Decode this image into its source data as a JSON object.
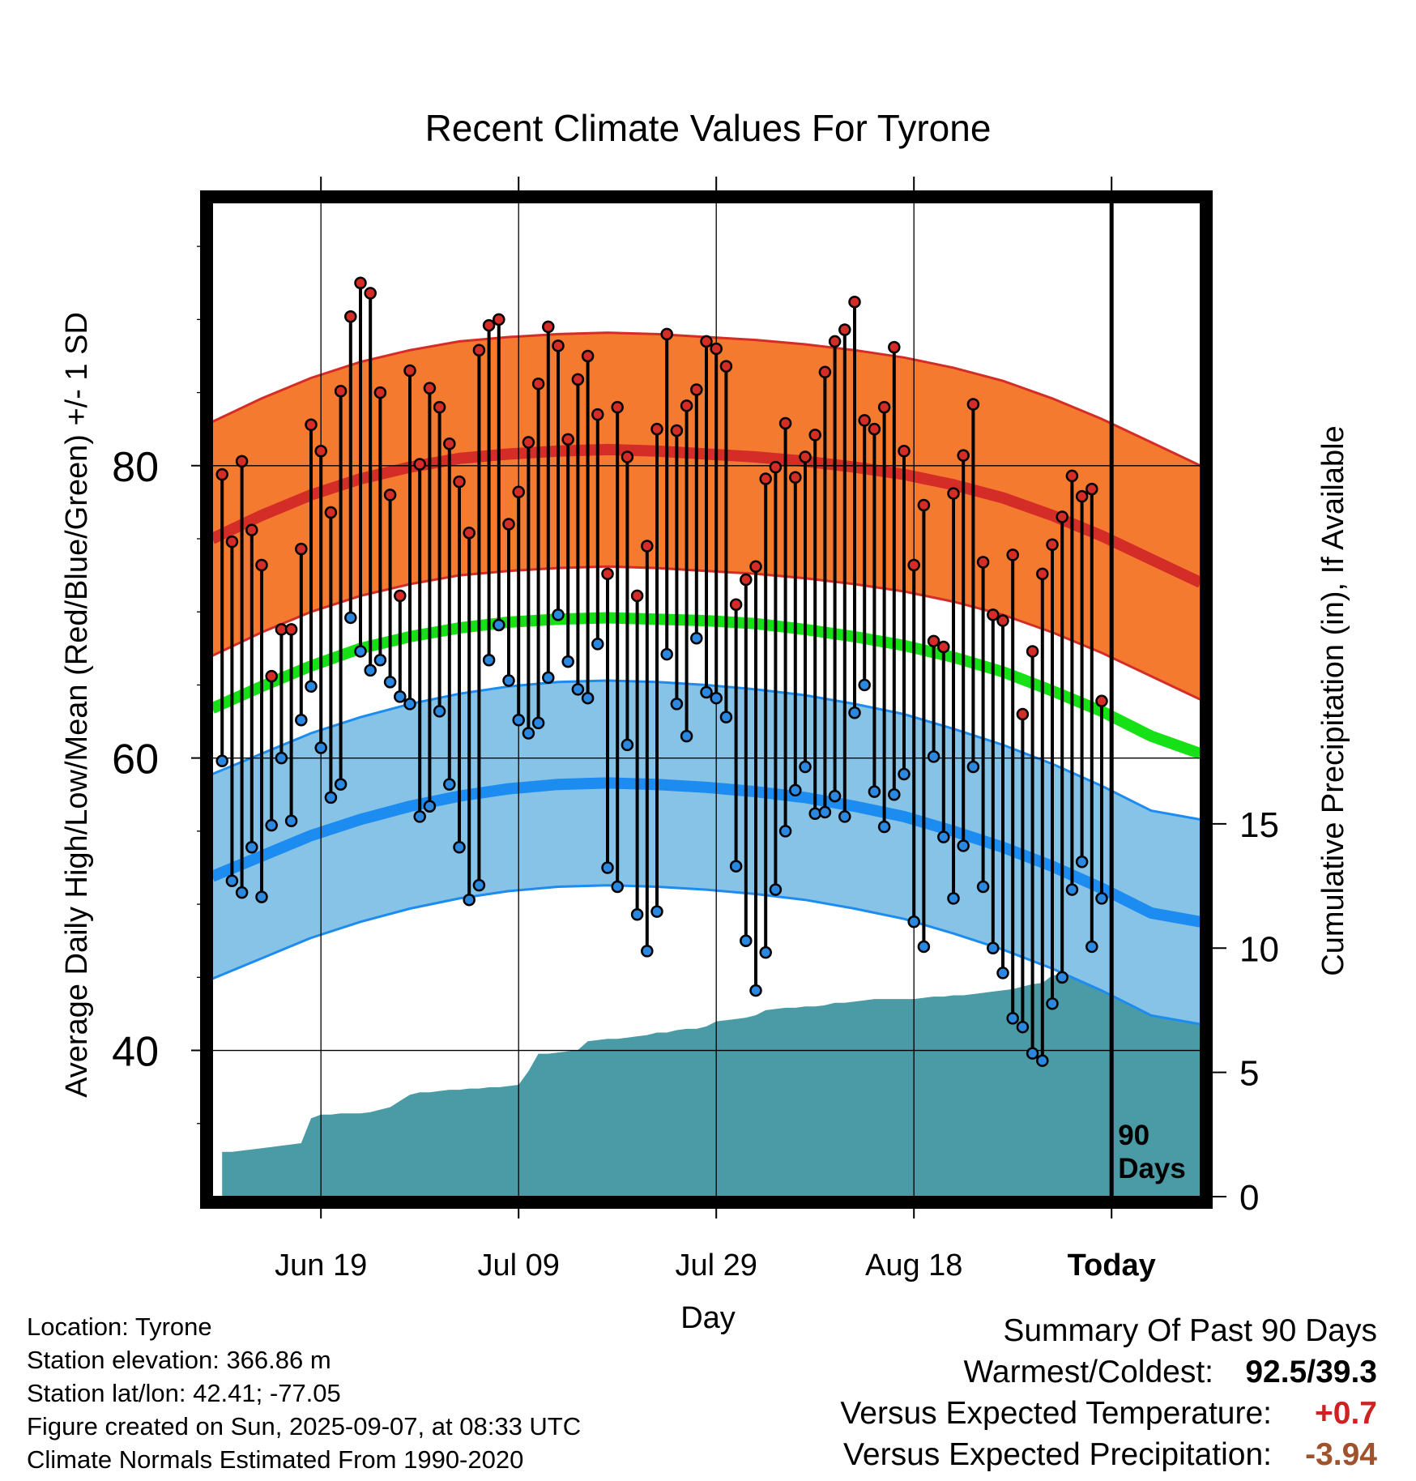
{
  "chart_data": {
    "type": "line",
    "title": "Recent Climate Values For Tyrone",
    "xlabel": "Day",
    "ylabel": "Average Daily High/Low/Mean (Red/Blue/Green) +/- 1 SD",
    "y2label": "Cumulative Precipitation (in), If Available",
    "ylim": [
      30,
      98
    ],
    "y2lim": [
      0,
      40
    ],
    "yticks": [
      "40",
      "60",
      "80"
    ],
    "y2ticks": [
      "0",
      "5",
      "10",
      "15"
    ],
    "x_tick_labels": [
      "Jun 19",
      "Jul 09",
      "Jul 29",
      "Aug 18",
      "Today"
    ],
    "x_tick_days": [
      10,
      30,
      50,
      70,
      90
    ],
    "xlim": [
      -1,
      99
    ],
    "today_day": 90,
    "today_label_line1": "90",
    "today_label_line2": "Days",
    "grid": true,
    "colors": {
      "high_band": "#f47a30",
      "high_mean": "#d42d28",
      "low_band": "#87c3e6",
      "low_mean": "#1c8cf0",
      "mean": "#16e016",
      "precip": "#4a9ba5",
      "high_point": "#d42d28",
      "low_point": "#2b88e0"
    },
    "normal_days": [
      -1,
      4,
      9,
      14,
      19,
      24,
      29,
      34,
      39,
      44,
      49,
      54,
      59,
      64,
      69,
      74,
      79,
      84,
      89,
      94,
      99
    ],
    "normal_high": [
      75.0,
      76.6,
      78.0,
      79.1,
      79.9,
      80.5,
      80.8,
      81.0,
      81.1,
      81.0,
      80.8,
      80.6,
      80.3,
      79.9,
      79.4,
      78.7,
      77.8,
      76.6,
      75.2,
      73.6,
      72.0
    ],
    "normal_high_sd": 8.0,
    "normal_low": [
      51.9,
      53.3,
      54.7,
      55.8,
      56.7,
      57.4,
      57.9,
      58.2,
      58.3,
      58.2,
      58.0,
      57.7,
      57.3,
      56.7,
      56.0,
      55.0,
      53.9,
      52.6,
      51.1,
      49.4,
      48.8
    ],
    "normal_low_sd": 7.0,
    "normal_mean": [
      63.4,
      64.9,
      66.3,
      67.5,
      68.3,
      68.9,
      69.3,
      69.5,
      69.6,
      69.5,
      69.4,
      69.2,
      68.8,
      68.3,
      67.7,
      66.9,
      65.9,
      64.6,
      63.2,
      61.5,
      60.3
    ],
    "highs": [
      79.4,
      74.8,
      80.3,
      75.6,
      73.2,
      65.6,
      68.8,
      68.8,
      74.3,
      82.8,
      81.0,
      76.8,
      85.1,
      90.2,
      92.5,
      91.8,
      85.0,
      78.0,
      71.1,
      86.5,
      80.1,
      85.3,
      84.0,
      81.5,
      78.9,
      75.4,
      87.9,
      89.6,
      90.0,
      76.0,
      78.2,
      81.6,
      85.6,
      89.5,
      88.2,
      81.8,
      85.9,
      87.5,
      83.5,
      72.6,
      84.0,
      80.6,
      71.1,
      74.5,
      82.5,
      89.0,
      82.4,
      84.1,
      85.2,
      88.5,
      88.0,
      86.8,
      70.5,
      72.2,
      73.1,
      79.1,
      79.9,
      82.9,
      79.2,
      80.6,
      82.1,
      86.4,
      88.5,
      89.3,
      91.2,
      83.1,
      82.5,
      84.0,
      88.1,
      81.0,
      73.2,
      77.3,
      68.0,
      67.6,
      78.1,
      80.7,
      84.2,
      73.4,
      69.8,
      69.4,
      73.9,
      63.0,
      67.3,
      72.6,
      74.6,
      76.5,
      79.3,
      77.9,
      78.4,
      63.9
    ],
    "lows": [
      59.8,
      51.6,
      50.8,
      53.9,
      50.5,
      55.4,
      60.0,
      55.7,
      62.6,
      64.9,
      60.7,
      57.3,
      58.2,
      69.6,
      67.3,
      66.0,
      66.7,
      65.2,
      64.2,
      63.7,
      56.0,
      56.7,
      63.2,
      58.2,
      53.9,
      50.3,
      51.3,
      66.7,
      69.1,
      65.3,
      62.6,
      61.7,
      62.4,
      65.5,
      69.8,
      66.6,
      64.7,
      64.1,
      67.8,
      52.5,
      51.2,
      60.9,
      49.3,
      46.8,
      49.5,
      67.1,
      63.7,
      61.5,
      68.2,
      64.5,
      64.1,
      62.8,
      52.6,
      47.5,
      44.1,
      46.7,
      51.0,
      55.0,
      57.8,
      59.4,
      56.2,
      56.3,
      57.4,
      56.0,
      63.1,
      65.0,
      57.7,
      55.3,
      57.5,
      58.9,
      48.8,
      47.1,
      60.1,
      54.6,
      50.4,
      54.0,
      59.4,
      51.2,
      47.0,
      45.3,
      42.2,
      41.6,
      39.8,
      39.3,
      43.2,
      45.0,
      51.0,
      52.9,
      47.1,
      50.4
    ],
    "precip_cumulative": [
      1.8,
      1.8,
      1.85,
      1.9,
      1.95,
      2.0,
      2.05,
      2.1,
      2.15,
      3.15,
      3.3,
      3.3,
      3.35,
      3.35,
      3.35,
      3.4,
      3.5,
      3.6,
      3.85,
      4.1,
      4.2,
      4.2,
      4.25,
      4.3,
      4.3,
      4.35,
      4.35,
      4.4,
      4.4,
      4.45,
      4.5,
      5.05,
      5.75,
      5.75,
      5.8,
      5.85,
      5.9,
      6.25,
      6.3,
      6.35,
      6.35,
      6.4,
      6.45,
      6.5,
      6.6,
      6.6,
      6.7,
      6.75,
      6.75,
      6.85,
      7.05,
      7.1,
      7.15,
      7.2,
      7.3,
      7.5,
      7.55,
      7.6,
      7.6,
      7.65,
      7.65,
      7.7,
      7.8,
      7.8,
      7.85,
      7.9,
      7.95,
      7.95,
      7.95,
      7.95,
      7.95,
      8.0,
      8.05,
      8.05,
      8.1,
      8.1,
      8.15,
      8.2,
      8.25,
      8.3,
      8.35,
      8.45,
      8.55,
      8.6,
      8.9,
      8.95,
      8.95,
      9.0,
      9.1,
      10.0,
      10.2,
      10.3,
      10.3,
      10.3,
      10.3,
      10.3,
      10.3,
      10.3,
      10.3,
      10.3,
      10.3,
      10.3
    ]
  },
  "info": {
    "location": "Location: Tyrone",
    "elevation": "Station elevation: 366.86 m",
    "latlon": "Station lat/lon: 42.41; -77.05",
    "created": "Figure created on Sun, 2025-09-07, at 08:33 UTC",
    "normals": "Climate Normals Estimated From 1990-2020"
  },
  "summary": {
    "heading": "Summary Of Past 90 Days",
    "warmest_label": "Warmest/Coldest:",
    "warmest_value": "92.5/39.3",
    "temp_label": "Versus Expected Temperature:",
    "temp_value": "+0.7",
    "precip_label": "Versus Expected Precipitation:",
    "precip_value": "-3.94"
  }
}
